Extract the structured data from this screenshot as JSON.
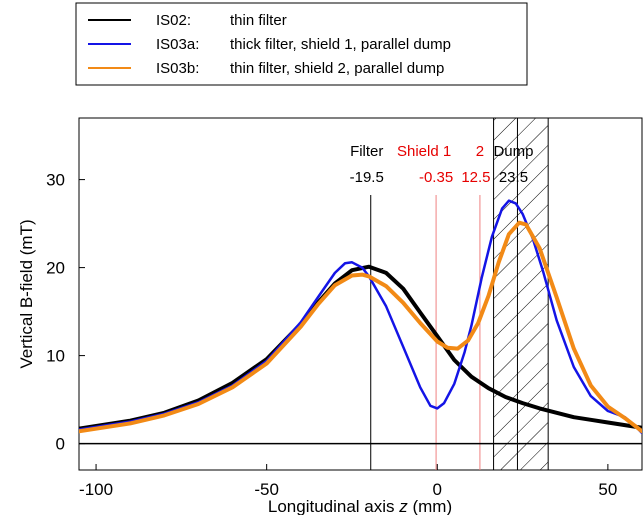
{
  "chart_data": {
    "type": "line",
    "xlabel_prefix": "Longitudinal axis ",
    "xlabel_var": "z",
    "xlabel_suffix": " (mm)",
    "ylabel": "Vertical B-field (mT)",
    "xlim": [
      -105,
      60
    ],
    "ylim": [
      -3,
      37
    ],
    "xticks": [
      -100,
      -50,
      0,
      50
    ],
    "yticks": [
      0,
      10,
      20,
      30
    ],
    "legend_position": "top-left, outside plot",
    "colors": {
      "black": "#000000",
      "blue": "#1414e6",
      "orange": "#f28a16",
      "red": "#e60000",
      "red_line": "#f08080"
    },
    "series": [
      {
        "name": "IS02:",
        "desc": "thin filter",
        "color": "#000000",
        "width": 4,
        "x": [
          -105,
          -90,
          -80,
          -70,
          -60,
          -50,
          -40,
          -35,
          -30,
          -25,
          -20,
          -15,
          -10,
          -5,
          0,
          5,
          10,
          15,
          20,
          25,
          30,
          35,
          40,
          45,
          50,
          55,
          60
        ],
        "y": [
          1.7,
          2.6,
          3.5,
          4.9,
          6.9,
          9.6,
          13.6,
          16.0,
          18.2,
          19.7,
          20.1,
          19.4,
          17.6,
          14.9,
          12.2,
          9.5,
          7.6,
          6.3,
          5.3,
          4.6,
          4.0,
          3.5,
          3.0,
          2.7,
          2.4,
          2.1,
          1.8
        ]
      },
      {
        "name": "IS03a:",
        "desc": "thick filter, shield 1, parallel dump",
        "color": "#1414e6",
        "width": 2.5,
        "x": [
          -105,
          -90,
          -80,
          -70,
          -60,
          -50,
          -40,
          -35,
          -30,
          -27,
          -25,
          -22,
          -20,
          -15,
          -10,
          -5,
          -2,
          0,
          2,
          5,
          8,
          10,
          13,
          16,
          19,
          21,
          23,
          25,
          28,
          31,
          35,
          40,
          45,
          50,
          55,
          58,
          60
        ],
        "y": [
          1.6,
          2.5,
          3.4,
          4.7,
          6.6,
          9.4,
          13.8,
          16.6,
          19.4,
          20.5,
          20.6,
          20.0,
          19.0,
          15.6,
          11.0,
          6.4,
          4.3,
          4.0,
          4.6,
          6.8,
          10.4,
          13.4,
          18.8,
          23.5,
          26.7,
          27.6,
          27.3,
          26.1,
          23.3,
          19.6,
          14.0,
          8.7,
          5.4,
          3.7,
          3.0,
          2.0,
          1.2
        ]
      },
      {
        "name": "IS03b:",
        "desc": "thin filter, shield 2, parallel dump",
        "color": "#f28a16",
        "width": 4,
        "x": [
          -105,
          -90,
          -80,
          -70,
          -60,
          -50,
          -40,
          -35,
          -30,
          -25,
          -22,
          -20,
          -15,
          -10,
          -5,
          0,
          3,
          6,
          9,
          12,
          15,
          18,
          21,
          24,
          26,
          30,
          35,
          40,
          45,
          50,
          55,
          58,
          60
        ],
        "y": [
          1.4,
          2.3,
          3.2,
          4.5,
          6.4,
          9.1,
          13.3,
          15.8,
          18.0,
          19.1,
          19.2,
          19.0,
          17.9,
          16.0,
          13.7,
          11.6,
          10.9,
          10.8,
          11.7,
          13.7,
          16.8,
          20.6,
          23.8,
          25.1,
          24.9,
          22.2,
          16.6,
          10.8,
          6.6,
          4.2,
          2.9,
          2.0,
          1.4
        ]
      }
    ],
    "vlines": [
      {
        "label": "Filter",
        "value": "-19.5",
        "x": -19.5,
        "kind": "black"
      },
      {
        "label": "Shield 1",
        "value": "-0.35",
        "x": -0.35,
        "kind": "red"
      },
      {
        "label": "2",
        "value": "12.5",
        "x": 12.5,
        "kind": "red"
      },
      {
        "label": "Dump",
        "value": "23.5",
        "x": 23.5,
        "kind": "black"
      }
    ],
    "dump_region": [
      16.5,
      32.5
    ]
  }
}
